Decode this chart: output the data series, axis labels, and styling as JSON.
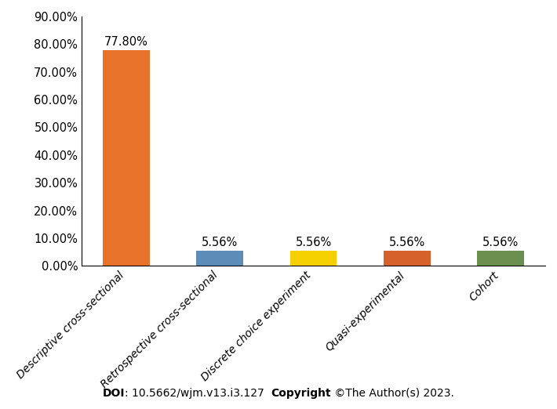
{
  "categories": [
    "Descriptive cross-sectional",
    "Retrospective cross-sectional",
    "Discrete choice experiment",
    "Quasi-experimental",
    "Cohort"
  ],
  "values": [
    77.8,
    5.56,
    5.56,
    5.56,
    5.56
  ],
  "bar_colors": [
    "#E8722A",
    "#5B8DB8",
    "#F5D000",
    "#D4622A",
    "#6B8F4E"
  ],
  "value_labels": [
    "77.80%",
    "5.56%",
    "5.56%",
    "5.56%",
    "5.56%"
  ],
  "ylim": [
    0,
    90
  ],
  "yticks": [
    0,
    10,
    20,
    30,
    40,
    50,
    60,
    70,
    80,
    90
  ],
  "ytick_labels": [
    "0.00%",
    "10.00%",
    "20.00%",
    "30.00%",
    "40.00%",
    "50.00%",
    "60.00%",
    "70.00%",
    "80.00%",
    "90.00%"
  ],
  "bar_width": 0.5,
  "background_color": "#ffffff",
  "label_fontsize": 10,
  "tick_fontsize": 10.5,
  "value_fontsize": 10.5,
  "doi_prefix": "DOI",
  "doi_middle": ": 10.5662/wjm.v13.i3.127  ",
  "doi_copyright": "Copyright",
  "doi_suffix": " ©The Author(s) 2023."
}
